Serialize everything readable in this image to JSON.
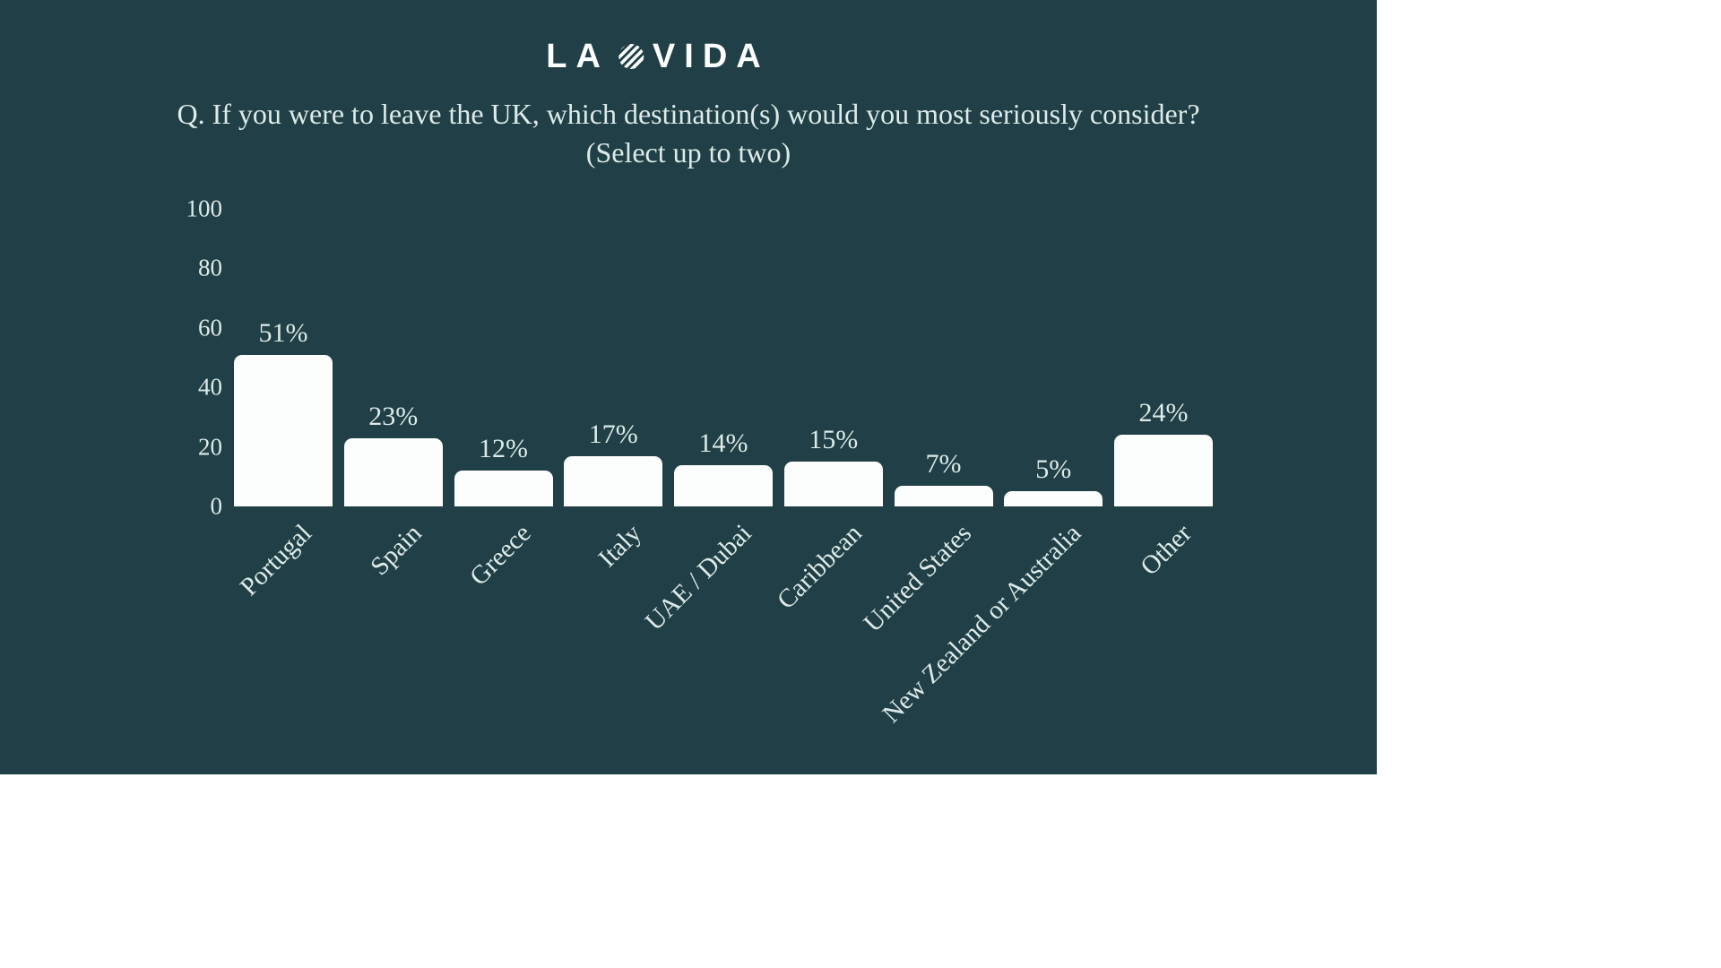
{
  "logo": {
    "left": "LA",
    "right": "VIDA",
    "icon": "striped-circle-icon"
  },
  "title": {
    "line1": "Q. If you were to leave the UK, which destination(s) would you most seriously consider?",
    "line2": "(Select up to two)"
  },
  "colors": {
    "background": "#213F46",
    "page": "#ffffff",
    "text": "#dcebe9",
    "bar": "#fcfefd"
  },
  "chart_data": {
    "type": "bar",
    "title": "Q. If you were to leave the UK, which destination(s) would you most seriously consider? (Select up to two)",
    "categories": [
      "Portugal",
      "Spain",
      "Greece",
      "Italy",
      "UAE / Dubai",
      "Caribbean",
      "United States",
      "New Zealand or Australia",
      "Other"
    ],
    "values": [
      51,
      23,
      12,
      17,
      14,
      15,
      7,
      5,
      24
    ],
    "value_labels": [
      "51%",
      "23%",
      "12%",
      "17%",
      "14%",
      "15%",
      "7%",
      "5%",
      "24%"
    ],
    "y_ticks": [
      0,
      20,
      40,
      60,
      80,
      100
    ],
    "ylim": [
      0,
      100
    ],
    "xlabel": "",
    "ylabel": "",
    "grid": false,
    "legend": false,
    "bar_color": "#fcfefd",
    "x_tick_rotation_deg": 45
  }
}
